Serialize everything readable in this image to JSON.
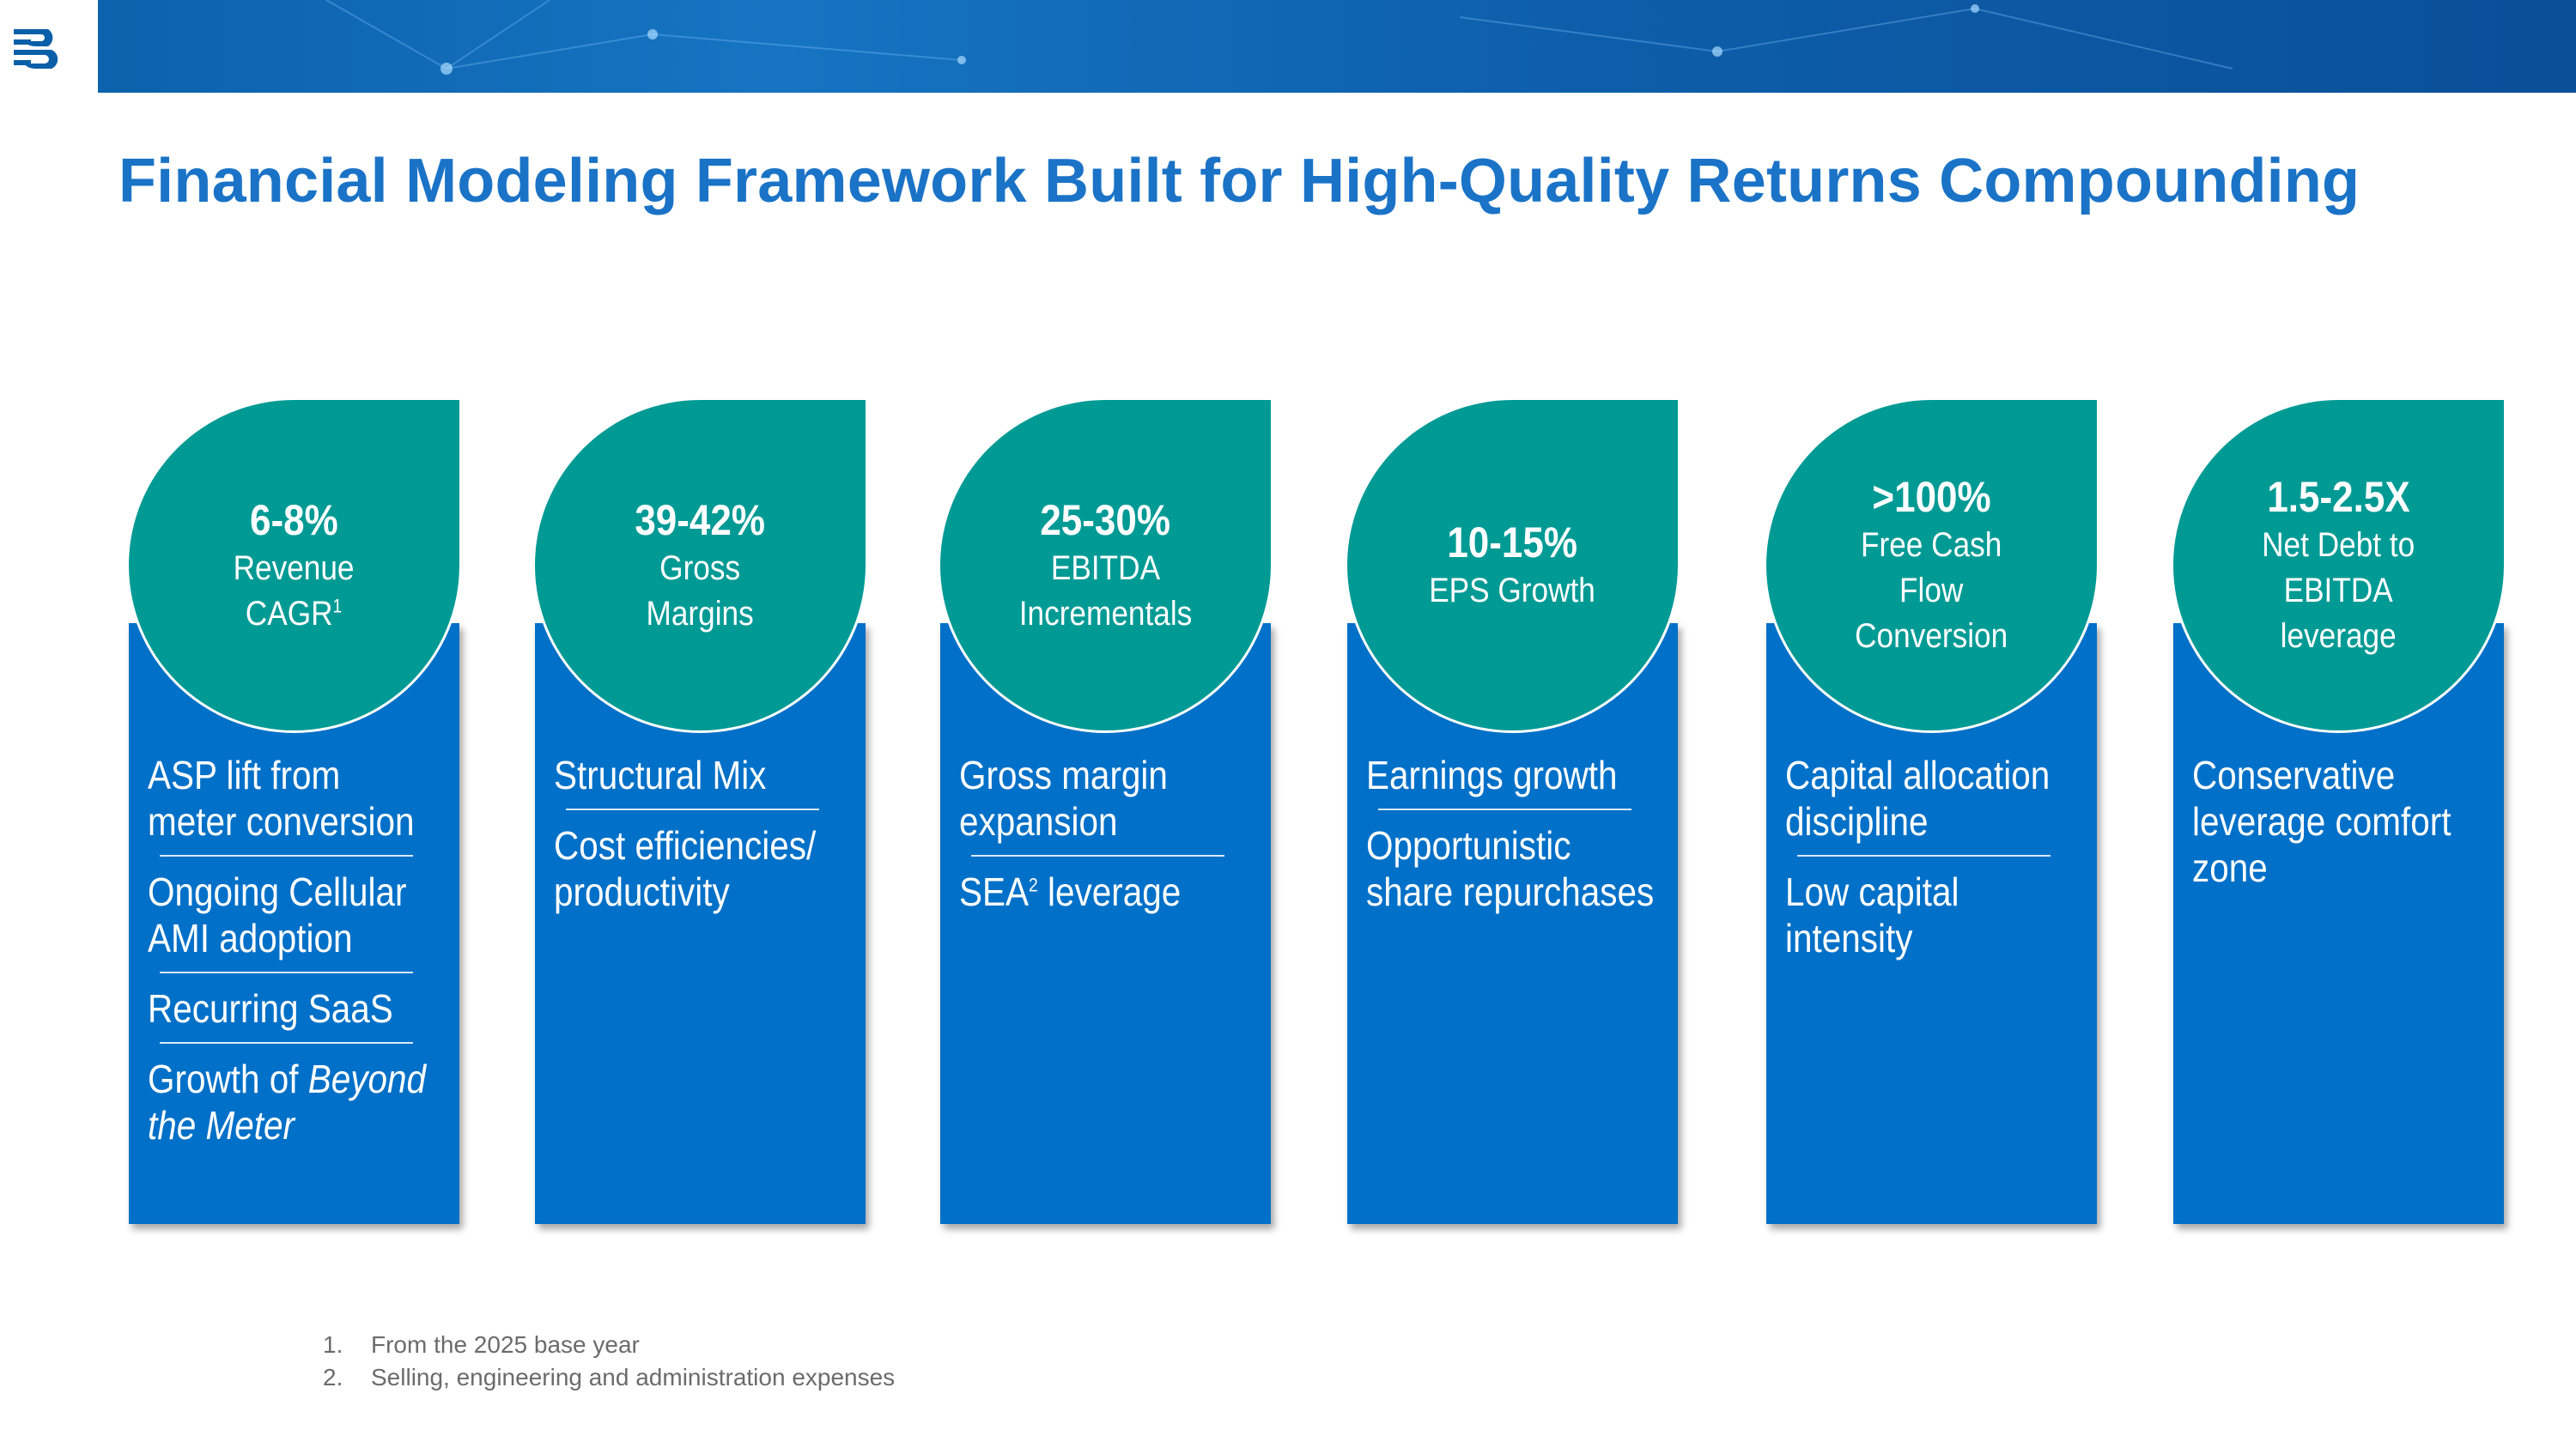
{
  "header": {
    "logo_name": "company-logo",
    "title": "Financial Modeling Framework Built for High-Quality Returns Compounding"
  },
  "colors": {
    "title_blue": "#1a73c7",
    "card_blue": "#0070c8",
    "teal": "#009a95",
    "footnote_gray": "#6b6b6b"
  },
  "columns": [
    {
      "metric": "6-8%",
      "label": "Revenue\nCAGR",
      "label_sup": "1",
      "items": [
        {
          "text": "ASP lift from\nmeter conversion"
        },
        {
          "text": "Ongoing Cellular\nAMI adoption"
        },
        {
          "text": "Recurring SaaS"
        },
        {
          "text": "Growth of ",
          "em": "Beyond\nthe Meter"
        }
      ]
    },
    {
      "metric": "39-42%",
      "label": "Gross\nMargins",
      "items": [
        {
          "text": "Structural Mix"
        },
        {
          "text": "Cost efficiencies/\nproductivity"
        }
      ]
    },
    {
      "metric": "25-30%",
      "label": "EBITDA\nIncrementals",
      "items": [
        {
          "text": "Gross margin\nexpansion"
        },
        {
          "text": "SEA",
          "sup": "2",
          "after": " leverage"
        }
      ]
    },
    {
      "metric": "10-15%",
      "label": "EPS Growth",
      "items": [
        {
          "text": "Earnings growth"
        },
        {
          "text": "Opportunistic\nshare repurchases"
        }
      ]
    },
    {
      "metric": ">100%",
      "label": "Free Cash\nFlow\nConversion",
      "items": [
        {
          "text": "Capital allocation\ndiscipline"
        },
        {
          "text": "Low capital\nintensity"
        }
      ]
    },
    {
      "metric": "1.5-2.5X",
      "label": "Net Debt to\nEBITDA\nleverage",
      "items": [
        {
          "text": "Conservative\nleverage comfort\nzone"
        }
      ]
    }
  ],
  "footnotes": [
    {
      "num": "1.",
      "text": "From the 2025 base year"
    },
    {
      "num": "2.",
      "text": "Selling, engineering and administration expenses"
    }
  ]
}
